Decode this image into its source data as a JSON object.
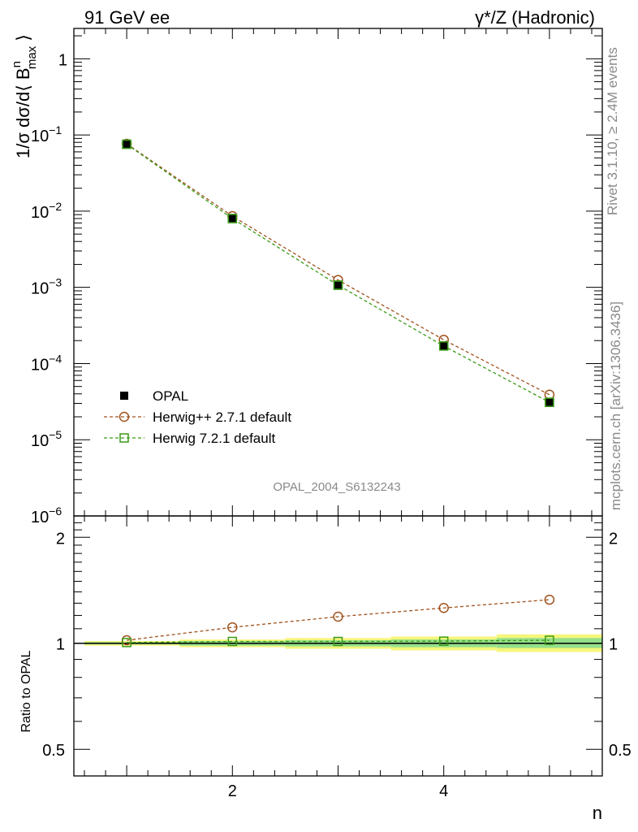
{
  "header": {
    "left": "91 GeV ee",
    "right": "γ*/Z (Hadronic)"
  },
  "side": {
    "rivet": "Rivet 3.1.10, ≥ 2.4M events",
    "mcplots": "mcplots.cern.ch [arXiv:1306.3436]"
  },
  "watermark": "OPAL_2004_S6132243",
  "main_ylabel": {
    "base": "1/σ dσ/d⟨ B",
    "sup": "n",
    "sub": "max",
    "close": "⟩"
  },
  "ratio_ylabel": "Ratio to OPAL",
  "xlabel": "n",
  "legend": [
    {
      "name": "OPAL",
      "marker": "filled-square",
      "color": "#000000"
    },
    {
      "name": "Herwig++ 2.7.1 default",
      "marker": "open-circle",
      "color": "#a0521e"
    },
    {
      "name": "Herwig 7.2.1 default",
      "marker": "open-square",
      "color": "#3a9a16"
    }
  ],
  "chart_data": [
    {
      "type": "scatter",
      "panel": "main",
      "x": [
        1,
        2,
        3,
        4,
        5
      ],
      "xlim": [
        0.5,
        5.5
      ],
      "ylim": [
        1e-06,
        2.5
      ],
      "yscale": "log",
      "xticks": [
        2,
        4
      ],
      "yticks": [
        {
          "v": 1e-06,
          "label": "10",
          "exp": "−6"
        },
        {
          "v": 1e-05,
          "label": "10",
          "exp": "−5"
        },
        {
          "v": 0.0001,
          "label": "10",
          "exp": "−4"
        },
        {
          "v": 0.001,
          "label": "10",
          "exp": "−3"
        },
        {
          "v": 0.01,
          "label": "10",
          "exp": "−2"
        },
        {
          "v": 0.1,
          "label": "10",
          "exp": "−1"
        },
        {
          "v": 1,
          "label": "1",
          "exp": ""
        }
      ],
      "series": [
        {
          "name": "OPAL",
          "values": [
            0.075,
            0.0079,
            0.00105,
            0.000168,
            3.05e-05
          ],
          "color": "#000000",
          "marker": "filled-square"
        },
        {
          "name": "Herwig++ 2.7.1 default",
          "values": [
            0.0765,
            0.0086,
            0.00125,
            0.000205,
            3.9e-05
          ],
          "color": "#a0521e",
          "marker": "open-circle"
        },
        {
          "name": "Herwig 7.2.1 default",
          "values": [
            0.0755,
            0.008,
            0.00107,
            0.00017,
            3.1e-05
          ],
          "color": "#3a9a16",
          "marker": "open-square"
        }
      ]
    },
    {
      "type": "scatter",
      "panel": "ratio",
      "x": [
        1,
        2,
        3,
        4,
        5
      ],
      "xlim": [
        0.5,
        5.5
      ],
      "ylim": [
        0.42,
        2.3
      ],
      "yscale": "log",
      "yticks": [
        {
          "v": 0.5,
          "label": "0.5"
        },
        {
          "v": 1,
          "label": "1"
        },
        {
          "v": 2,
          "label": "2"
        }
      ],
      "xticks": [
        2,
        4
      ],
      "bands": [
        {
          "x0": 0.6,
          "x1": 1.5,
          "yellow": [
            0.985,
            1.015
          ],
          "green": [
            0.993,
            1.007
          ]
        },
        {
          "x0": 1.5,
          "x1": 2.5,
          "yellow": [
            0.975,
            1.025
          ],
          "green": [
            0.985,
            1.015
          ]
        },
        {
          "x0": 2.5,
          "x1": 3.5,
          "yellow": [
            0.965,
            1.035
          ],
          "green": [
            0.98,
            1.02
          ]
        },
        {
          "x0": 3.5,
          "x1": 4.5,
          "yellow": [
            0.955,
            1.045
          ],
          "green": [
            0.975,
            1.025
          ]
        },
        {
          "x0": 4.5,
          "x1": 5.5,
          "yellow": [
            0.945,
            1.06
          ],
          "green": [
            0.97,
            1.035
          ]
        }
      ],
      "series": [
        {
          "name": "Herwig++ 2.7.1 default",
          "values": [
            1.02,
            1.11,
            1.19,
            1.26,
            1.33
          ],
          "color": "#a0521e",
          "marker": "open-circle"
        },
        {
          "name": "Herwig 7.2.1 default",
          "values": [
            1.005,
            1.012,
            1.012,
            1.014,
            1.02
          ],
          "color": "#3a9a16",
          "marker": "open-square"
        }
      ]
    }
  ]
}
